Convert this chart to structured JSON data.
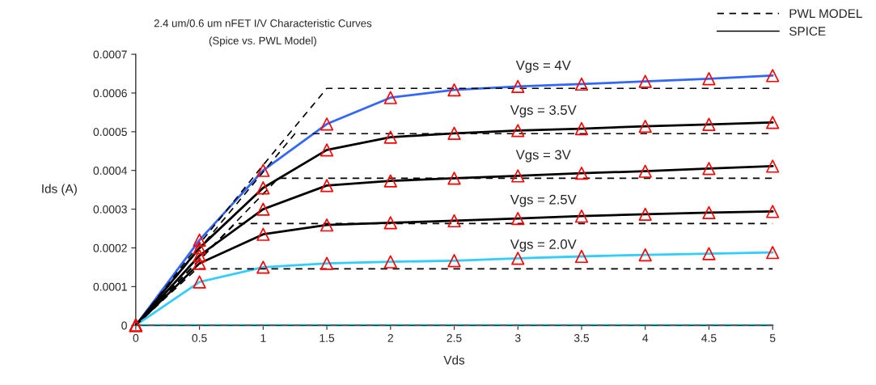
{
  "chart_data": {
    "type": "line",
    "title": "2.4 um/0.6 um nFET I/V Characteristic Curves",
    "subtitle": "(Spice vs. PWL Model)",
    "xlabel": "Vds",
    "ylabel": "Ids (A)",
    "x": [
      0,
      0.5,
      1,
      1.5,
      2,
      2.5,
      3,
      3.5,
      4,
      4.5,
      5
    ],
    "series": [
      {
        "color": "#3366ff",
        "line_style": "solid",
        "values": [
          0,
          0.00022,
          0.0004,
          0.00052,
          0.000588,
          0.000608,
          0.000617,
          0.000623,
          0.00063,
          0.000637,
          0.000645
        ]
      },
      {
        "name": "SPICE",
        "color": "#000000",
        "line_style": "solid",
        "values": [
          0,
          0.0002,
          0.000355,
          0.000453,
          0.000486,
          0.000496,
          0.000503,
          0.000508,
          0.000514,
          0.000519,
          0.000524
        ]
      },
      {
        "color": "#000000",
        "line_style": "solid",
        "values": [
          0,
          0.00018,
          0.0003,
          0.000361,
          0.000373,
          0.00038,
          0.000386,
          0.000393,
          0.000398,
          0.000405,
          0.000411
        ]
      },
      {
        "color": "#000000",
        "line_style": "solid",
        "values": [
          0,
          0.00016,
          0.000235,
          0.000259,
          0.000265,
          0.00027,
          0.000276,
          0.000282,
          0.000287,
          0.000291,
          0.000294
        ]
      },
      {
        "color": "#33ccff",
        "line_style": "solid",
        "values": [
          0,
          0.000112,
          0.00015,
          0.00016,
          0.000164,
          0.000167,
          0.000173,
          0.000178,
          0.000182,
          0.000185,
          0.000188
        ]
      },
      {
        "color": "#33ddee",
        "line_style": "solid",
        "x": [
          0,
          5
        ],
        "values": [
          0,
          0
        ]
      },
      {
        "color": "#000000",
        "line_style": "dashed",
        "x": [
          0,
          0.5,
          1,
          1.5,
          5
        ],
        "values": [
          0,
          0.00021,
          0.000414,
          0.000612,
          0.000612
        ]
      },
      {
        "name": "PWL MODEL",
        "color": "#000000",
        "line_style": "dashed",
        "x": [
          0,
          1.25,
          5
        ],
        "values": [
          0,
          0.000495,
          0.000495
        ]
      },
      {
        "color": "#000000",
        "line_style": "dashed",
        "x": [
          0,
          1.12,
          5
        ],
        "values": [
          0,
          0.00038,
          0.00038
        ]
      },
      {
        "color": "#000000",
        "line_style": "dashed",
        "x": [
          0,
          0.78,
          5
        ],
        "values": [
          0,
          0.000263,
          0.000263
        ]
      },
      {
        "color": "#000000",
        "line_style": "dashed",
        "x": [
          0,
          0.48,
          5
        ],
        "values": [
          0,
          0.000146,
          0.000146
        ]
      },
      {
        "color": "#993333",
        "line_style": "dashed",
        "x": [
          0,
          5
        ],
        "values": [
          0,
          0
        ]
      },
      {
        "type": "scatter",
        "color": "#ff0000",
        "marker": "triangle",
        "values": [
          0,
          0.00022,
          0.0004,
          0.00052,
          0.000588,
          0.000608,
          0.000617,
          0.000623,
          0.00063,
          0.000637,
          0.000645
        ]
      },
      {
        "type": "scatter",
        "color": "#ff0000",
        "marker": "triangle",
        "values": [
          0,
          0.0002,
          0.000355,
          0.000453,
          0.000486,
          0.000496,
          0.000503,
          0.000508,
          0.000514,
          0.000519,
          0.000524
        ]
      },
      {
        "type": "scatter",
        "color": "#ff0000",
        "marker": "triangle",
        "values": [
          0,
          0.00018,
          0.0003,
          0.000361,
          0.000373,
          0.00038,
          0.000386,
          0.000393,
          0.000398,
          0.000405,
          0.000411
        ]
      },
      {
        "type": "scatter",
        "color": "#ff0000",
        "marker": "triangle",
        "values": [
          0,
          0.00016,
          0.000235,
          0.000259,
          0.000265,
          0.00027,
          0.000276,
          0.000282,
          0.000287,
          0.000291,
          0.000294
        ]
      },
      {
        "type": "scatter",
        "color": "#ff0000",
        "marker": "triangle",
        "values": [
          0,
          0.000112,
          0.00015,
          0.00016,
          0.000164,
          0.000167,
          0.000173,
          0.000178,
          0.000182,
          0.000185,
          0.000188
        ]
      }
    ],
    "annotations": [
      "Vgs = 4V",
      "Vgs = 3.5V",
      "Vgs = 3V",
      "Vgs = 2.5V",
      "Vgs = 2.0V"
    ],
    "xlim": [
      0,
      5
    ],
    "ylim": [
      0,
      0.0007
    ],
    "xticks": [
      0,
      0.5,
      1,
      1.5,
      2,
      2.5,
      3,
      3.5,
      4,
      4.5,
      5
    ],
    "yticks": [
      0,
      0.0001,
      0.0002,
      0.0003,
      0.0004,
      0.0005,
      0.0006,
      0.0007
    ],
    "grid": false,
    "legend": "top right"
  }
}
